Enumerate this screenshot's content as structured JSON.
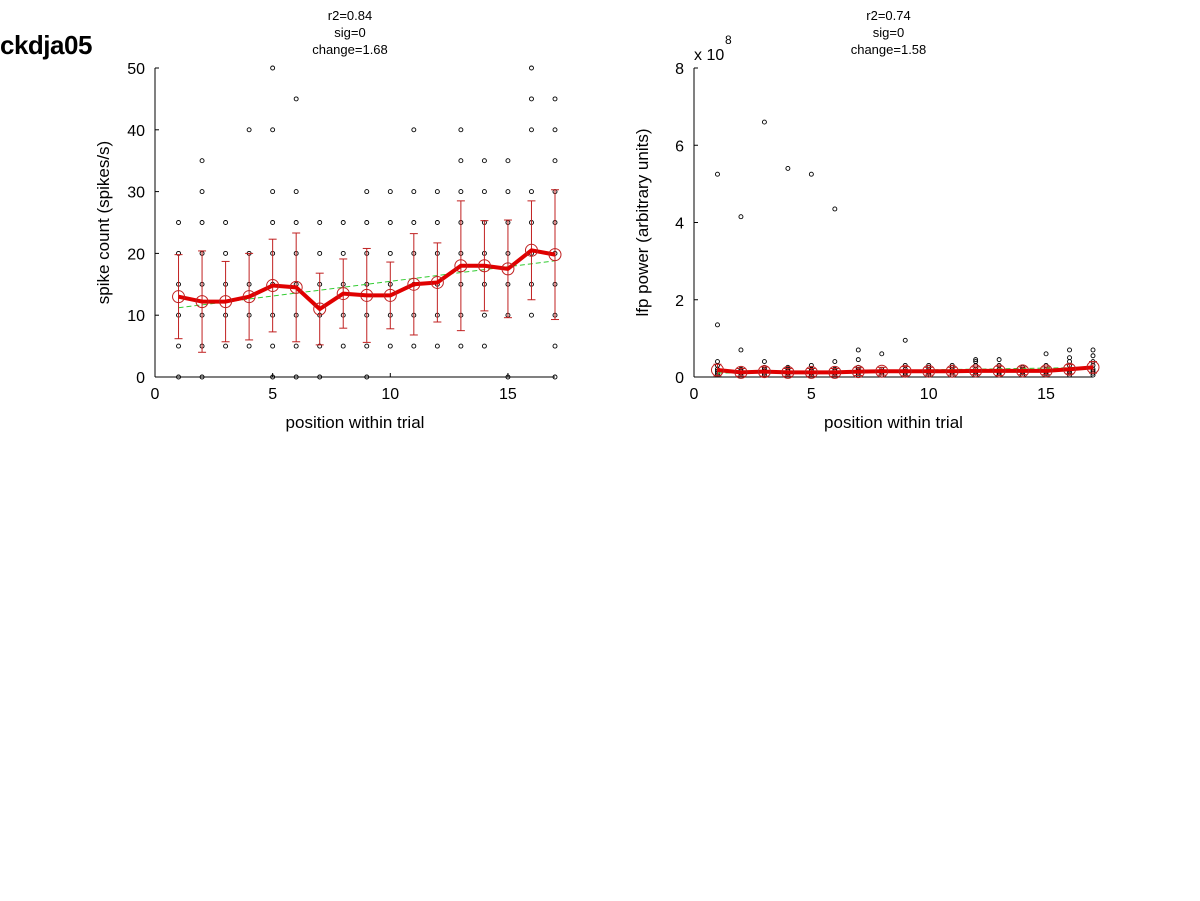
{
  "figure": {
    "title": "ckdja05"
  },
  "colors": {
    "mean_line": "#e00000",
    "errorbar": "#c02020",
    "fit_line": "#33cc33",
    "points": "#000000",
    "axis": "#000000"
  },
  "chart_data": [
    {
      "type": "scatter",
      "annotations": [
        "r2=0.84",
        "sig=0",
        "change=1.68"
      ],
      "xlabel": "position within trial",
      "ylabel": "spike count (spikes/s)",
      "xlim": [
        0,
        17
      ],
      "ylim": [
        0,
        50
      ],
      "xticks": [
        0,
        5,
        10,
        15
      ],
      "yticks": [
        0,
        10,
        20,
        30,
        40,
        50
      ],
      "grid": false,
      "raw_points": [
        {
          "x": 1,
          "ys": [
            0,
            5,
            10,
            15,
            20,
            25
          ]
        },
        {
          "x": 2,
          "ys": [
            0,
            5,
            10,
            15,
            20,
            25,
            30,
            35
          ]
        },
        {
          "x": 3,
          "ys": [
            5,
            10,
            15,
            20,
            25
          ]
        },
        {
          "x": 4,
          "ys": [
            5,
            10,
            15,
            20,
            40
          ]
        },
        {
          "x": 5,
          "ys": [
            0,
            5,
            10,
            15,
            20,
            25,
            30,
            40,
            50
          ]
        },
        {
          "x": 6,
          "ys": [
            0,
            5,
            10,
            15,
            20,
            25,
            30,
            45
          ]
        },
        {
          "x": 7,
          "ys": [
            0,
            5,
            10,
            15,
            20,
            25
          ]
        },
        {
          "x": 8,
          "ys": [
            5,
            10,
            15,
            20,
            25
          ]
        },
        {
          "x": 9,
          "ys": [
            0,
            5,
            10,
            15,
            20,
            25,
            30
          ]
        },
        {
          "x": 10,
          "ys": [
            5,
            10,
            15,
            20,
            25,
            30
          ]
        },
        {
          "x": 11,
          "ys": [
            5,
            10,
            15,
            20,
            25,
            30,
            40
          ]
        },
        {
          "x": 12,
          "ys": [
            5,
            10,
            15,
            20,
            25,
            30
          ]
        },
        {
          "x": 13,
          "ys": [
            5,
            10,
            15,
            20,
            25,
            30,
            35,
            40
          ]
        },
        {
          "x": 14,
          "ys": [
            5,
            10,
            15,
            20,
            25,
            30,
            35
          ]
        },
        {
          "x": 15,
          "ys": [
            0,
            10,
            15,
            20,
            25,
            30,
            35
          ]
        },
        {
          "x": 16,
          "ys": [
            10,
            15,
            20,
            25,
            30,
            40,
            45,
            50
          ]
        },
        {
          "x": 17,
          "ys": [
            0,
            5,
            10,
            15,
            20,
            25,
            30,
            35,
            40,
            45
          ]
        }
      ],
      "mean": {
        "x": [
          1,
          2,
          3,
          4,
          5,
          6,
          7,
          8,
          9,
          10,
          11,
          12,
          13,
          14,
          15,
          16,
          17
        ],
        "y": [
          13,
          12.2,
          12.2,
          13,
          14.8,
          14.5,
          11,
          13.5,
          13.2,
          13.2,
          15,
          15.3,
          18,
          18,
          17.5,
          20.5,
          19.8
        ],
        "err": [
          6.8,
          8.2,
          6.5,
          7,
          7.5,
          8.8,
          5.8,
          5.6,
          7.6,
          5.4,
          8.2,
          6.4,
          10.5,
          7.3,
          7.9,
          8,
          10.5
        ]
      },
      "fit": {
        "x": [
          1,
          17
        ],
        "y": [
          11.2,
          18.8
        ]
      }
    },
    {
      "type": "scatter",
      "annotations": [
        "r2=0.74",
        "sig=0",
        "change=1.58"
      ],
      "xlabel": "position within trial",
      "ylabel": "lfp power (arbitrary units)",
      "y_multiplier": "x 10",
      "y_exponent": "8",
      "xlim": [
        0,
        17
      ],
      "ylim": [
        0,
        8
      ],
      "xticks": [
        0,
        5,
        10,
        15
      ],
      "yticks": [
        0,
        2,
        4,
        6,
        8
      ],
      "grid": false,
      "raw_points": [
        {
          "x": 1,
          "ys": [
            0.05,
            0.1,
            0.15,
            0.2,
            0.3,
            0.4,
            1.35,
            5.25
          ]
        },
        {
          "x": 2,
          "ys": [
            0.05,
            0.1,
            0.15,
            0.2,
            0.7,
            4.15
          ]
        },
        {
          "x": 3,
          "ys": [
            0.05,
            0.1,
            0.15,
            0.2,
            0.25,
            0.4,
            6.6
          ]
        },
        {
          "x": 4,
          "ys": [
            0.05,
            0.1,
            0.15,
            0.2,
            0.25,
            5.4
          ]
        },
        {
          "x": 5,
          "ys": [
            0.05,
            0.1,
            0.15,
            0.2,
            0.3,
            5.25
          ]
        },
        {
          "x": 6,
          "ys": [
            0.05,
            0.1,
            0.15,
            0.2,
            0.4,
            4.35
          ]
        },
        {
          "x": 7,
          "ys": [
            0.05,
            0.1,
            0.15,
            0.2,
            0.25,
            0.45,
            0.7
          ]
        },
        {
          "x": 8,
          "ys": [
            0.05,
            0.1,
            0.15,
            0.2,
            0.6
          ]
        },
        {
          "x": 9,
          "ys": [
            0.05,
            0.1,
            0.15,
            0.2,
            0.3,
            0.95
          ]
        },
        {
          "x": 10,
          "ys": [
            0.05,
            0.1,
            0.15,
            0.2,
            0.25,
            0.3
          ]
        },
        {
          "x": 11,
          "ys": [
            0.05,
            0.1,
            0.15,
            0.2,
            0.25,
            0.3
          ]
        },
        {
          "x": 12,
          "ys": [
            0.05,
            0.1,
            0.15,
            0.2,
            0.3,
            0.4,
            0.45
          ]
        },
        {
          "x": 13,
          "ys": [
            0.05,
            0.1,
            0.15,
            0.2,
            0.3,
            0.45
          ]
        },
        {
          "x": 14,
          "ys": [
            0.05,
            0.1,
            0.15,
            0.2,
            0.25
          ]
        },
        {
          "x": 15,
          "ys": [
            0.05,
            0.1,
            0.15,
            0.2,
            0.3,
            0.6
          ]
        },
        {
          "x": 16,
          "ys": [
            0.05,
            0.1,
            0.15,
            0.2,
            0.3,
            0.4,
            0.5,
            0.7
          ]
        },
        {
          "x": 17,
          "ys": [
            0.05,
            0.1,
            0.15,
            0.2,
            0.3,
            0.4,
            0.55,
            0.7
          ]
        }
      ],
      "mean": {
        "x": [
          1,
          2,
          3,
          4,
          5,
          6,
          7,
          8,
          9,
          10,
          11,
          12,
          13,
          14,
          15,
          16,
          17
        ],
        "y": [
          0.18,
          0.12,
          0.14,
          0.12,
          0.12,
          0.12,
          0.14,
          0.15,
          0.15,
          0.15,
          0.15,
          0.16,
          0.16,
          0.16,
          0.16,
          0.2,
          0.25
        ],
        "err": [
          0.15,
          0.1,
          0.12,
          0.1,
          0.1,
          0.1,
          0.1,
          0.1,
          0.12,
          0.1,
          0.1,
          0.1,
          0.12,
          0.1,
          0.1,
          0.12,
          0.15
        ]
      },
      "fit": {
        "x": [
          1,
          17
        ],
        "y": [
          0.1,
          0.25
        ]
      }
    }
  ]
}
